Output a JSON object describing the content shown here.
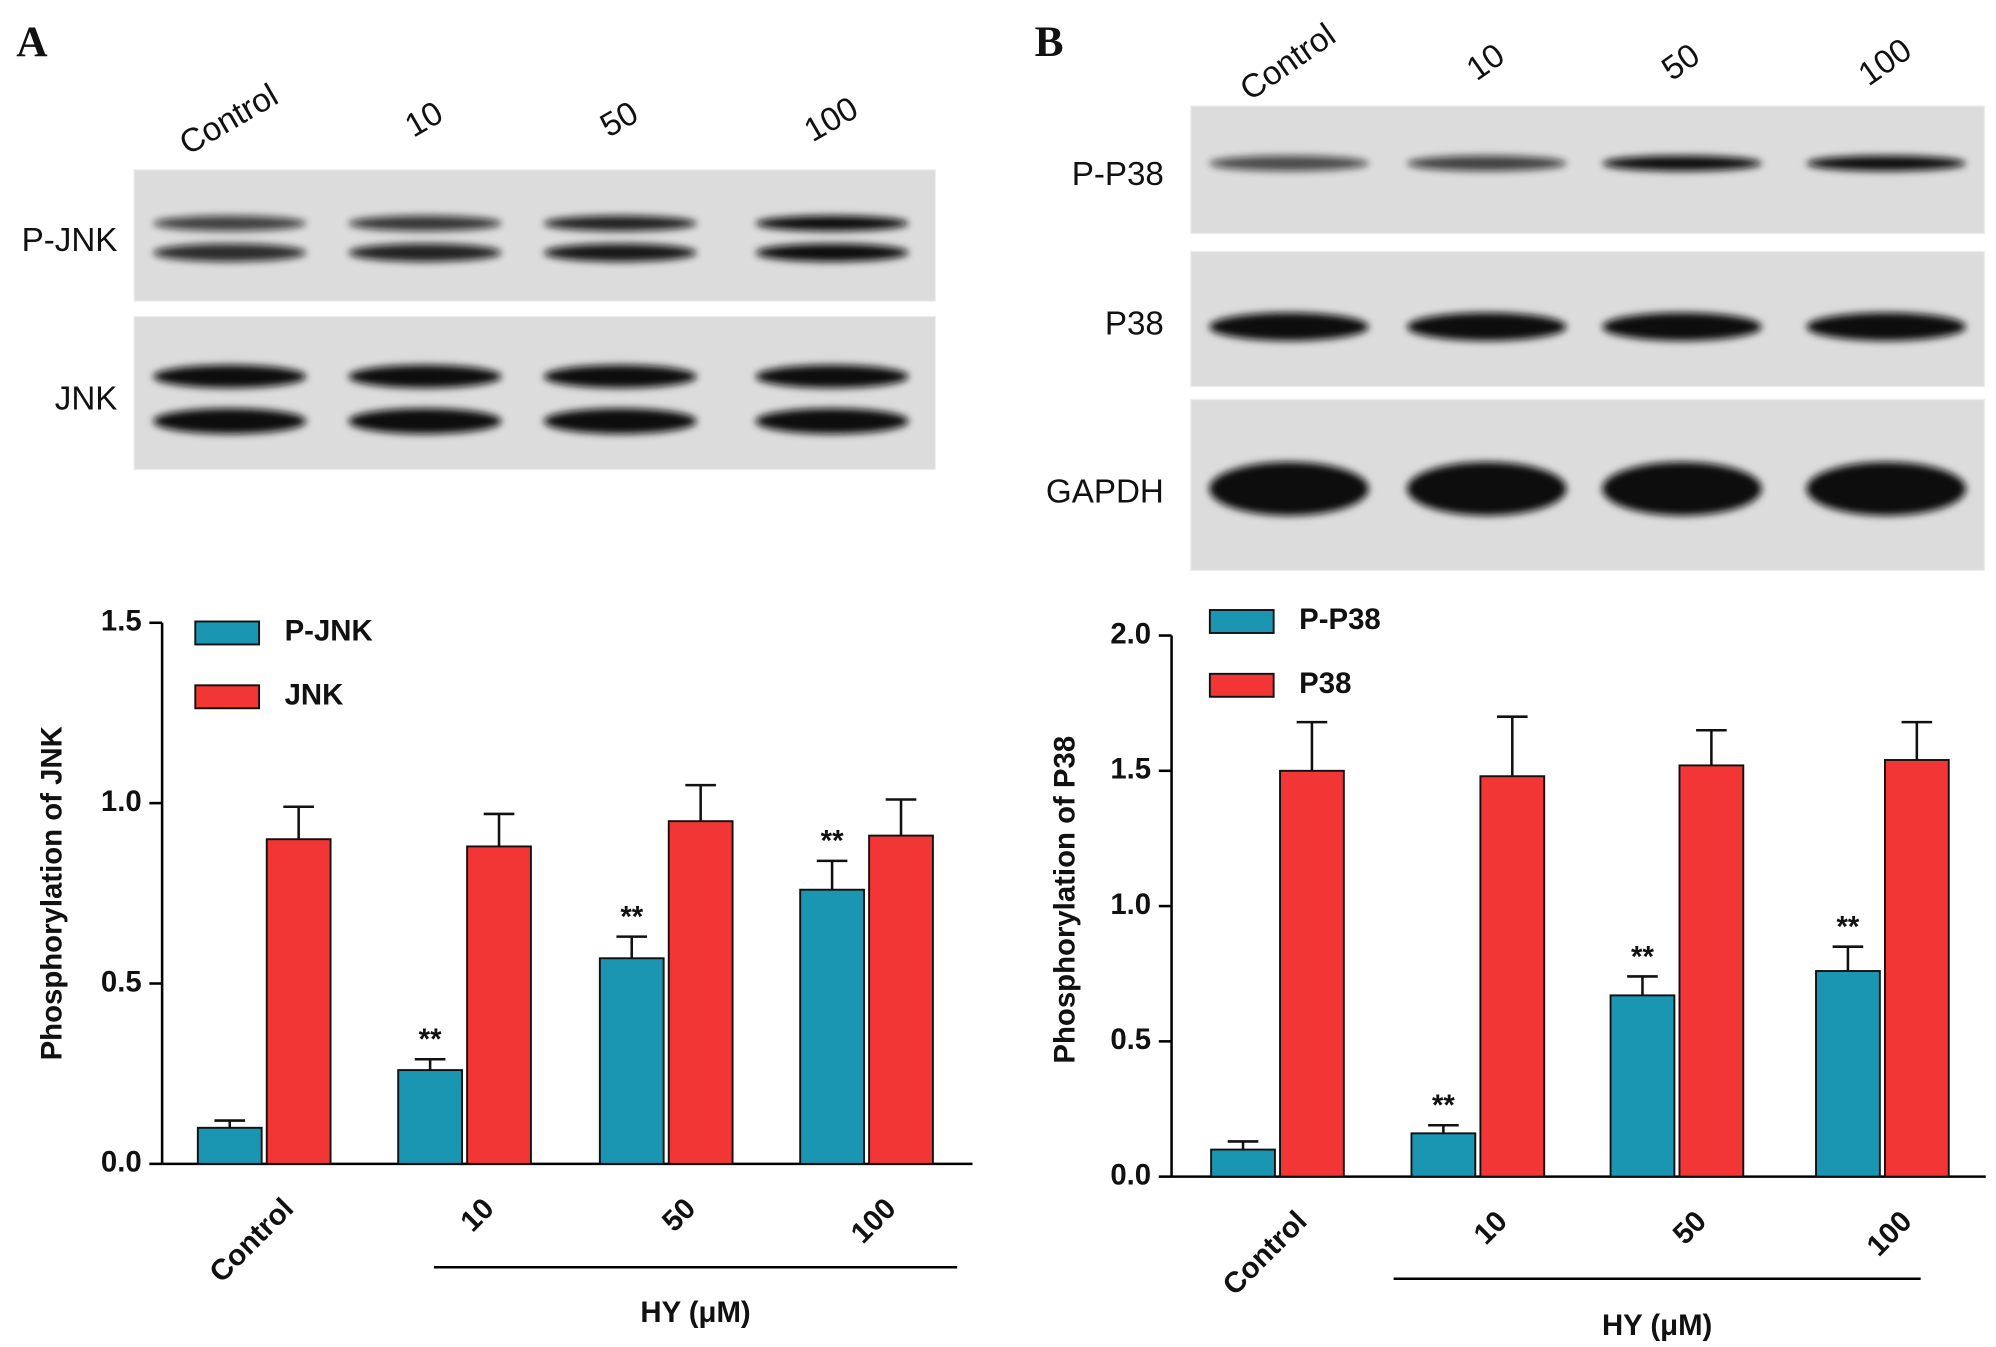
{
  "chart_data": [
    {
      "type": "bar",
      "panel": "A",
      "blot": {
        "lanes": [
          "Control",
          "10",
          "50",
          "100"
        ],
        "rows": [
          "P-JNK",
          "JNK"
        ]
      },
      "ylabel": "Phosphorylation of JNK",
      "categories": [
        "Control",
        "10",
        "50",
        "100"
      ],
      "group_label": "HY (μM)",
      "ylim": [
        0,
        1.5
      ],
      "yticks": [
        {
          "value": 0,
          "label": "0.0"
        },
        0.5,
        {
          "value": 1,
          "label": "1.0"
        },
        1.5
      ],
      "series": [
        {
          "name": "P-JNK",
          "color": "#1a96b2",
          "values": [
            0.1,
            0.26,
            0.57,
            0.76
          ],
          "errors": [
            0.02,
            0.03,
            0.06,
            0.08
          ],
          "annotations": [
            null,
            "**",
            "**",
            "**"
          ]
        },
        {
          "name": "JNK",
          "color": "#f23535",
          "values": [
            0.9,
            0.88,
            0.95,
            0.91
          ],
          "errors": [
            0.09,
            0.09,
            0.1,
            0.1
          ]
        }
      ]
    },
    {
      "type": "bar",
      "panel": "B",
      "blot": {
        "lanes": [
          "Control",
          "10",
          "50",
          "100"
        ],
        "rows": [
          "P-P38",
          "P38",
          "GAPDH"
        ]
      },
      "ylabel": "Phosphorylation of P38",
      "categories": [
        "Control",
        "10",
        "50",
        "100"
      ],
      "group_label": "HY (μM)",
      "ylim": [
        0,
        2
      ],
      "yticks": [
        {
          "value": 0,
          "label": "0.0"
        },
        0.5,
        {
          "value": 1,
          "label": "1.0"
        },
        1.5,
        {
          "value": 2,
          "label": "2.0"
        }
      ],
      "series": [
        {
          "name": "P-P38",
          "color": "#1a96b2",
          "values": [
            0.1,
            0.16,
            0.67,
            0.76
          ],
          "errors": [
            0.03,
            0.03,
            0.07,
            0.09
          ],
          "annotations": [
            null,
            "**",
            "**",
            "**"
          ]
        },
        {
          "name": "P38",
          "color": "#f23535",
          "values": [
            1.5,
            1.48,
            1.52,
            1.54
          ],
          "errors": [
            0.18,
            0.22,
            0.13,
            0.14
          ]
        }
      ]
    }
  ]
}
